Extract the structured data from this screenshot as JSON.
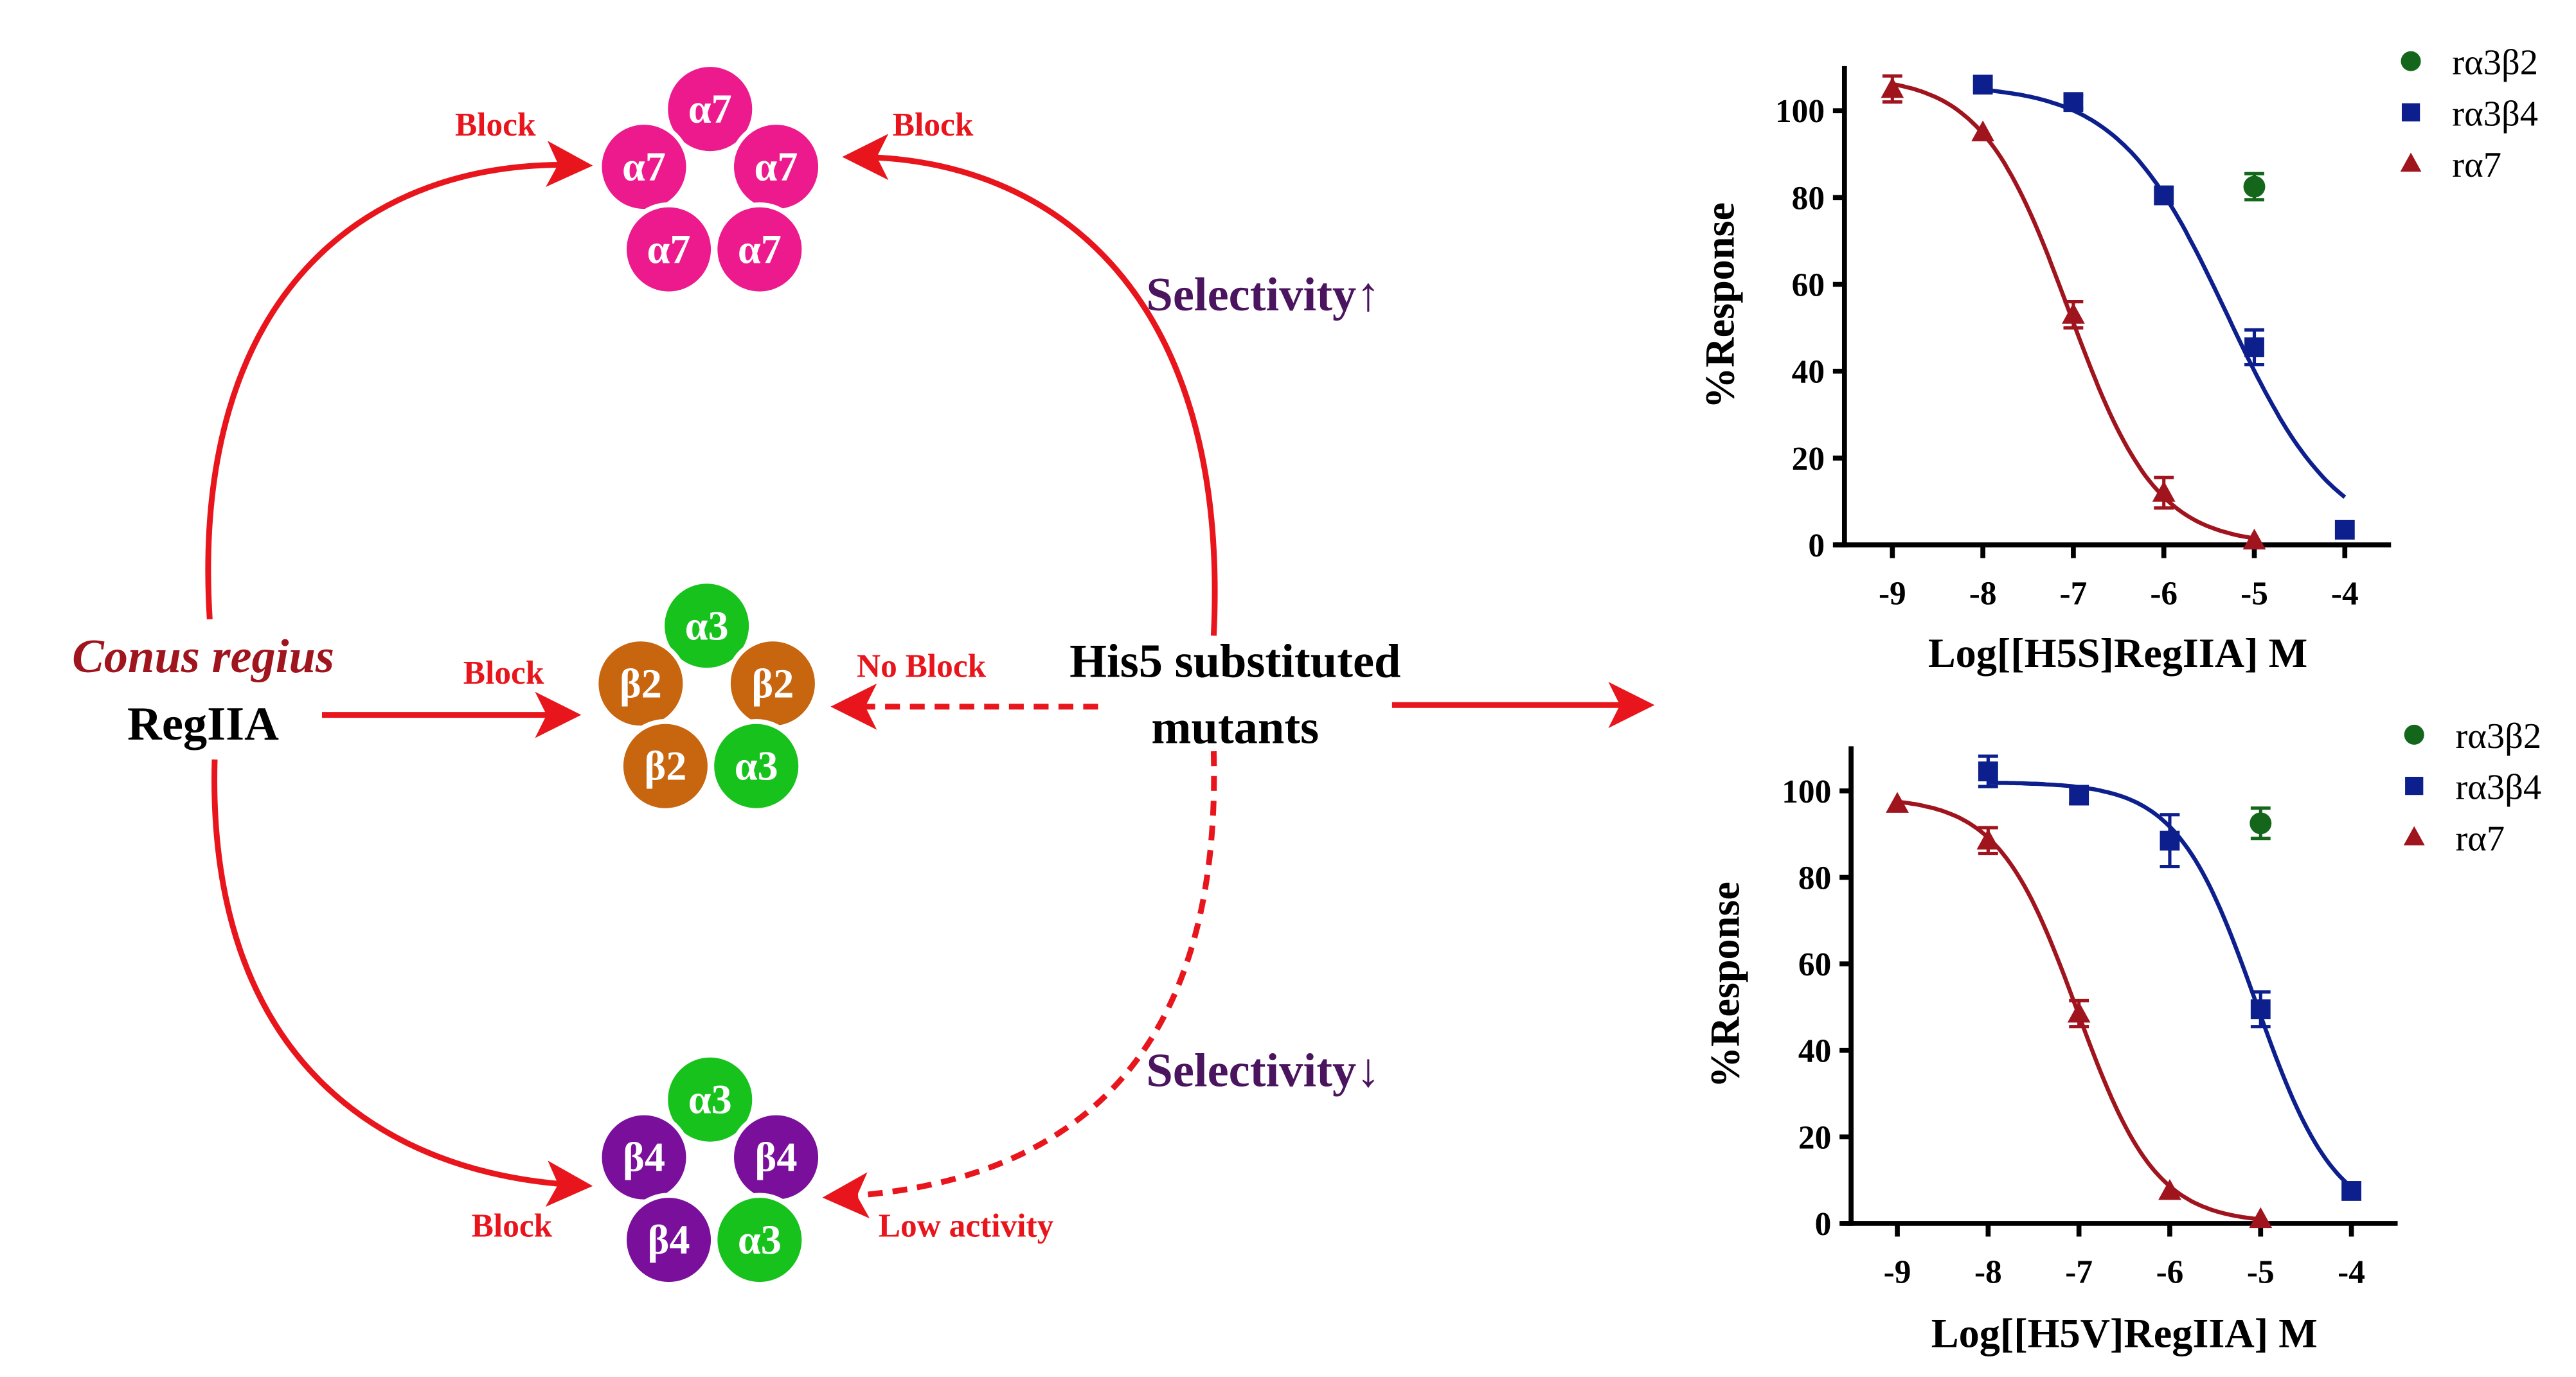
{
  "diagram": {
    "labels": {
      "block_top_left": "Block",
      "block_top_right": "Block",
      "selectivity_up": "Selectivity↑",
      "species": "Conus regius",
      "peptide": "RegIIA",
      "block_middle": "Block",
      "no_block": "No Block",
      "mutants_line1": "His5 substituted",
      "mutants_line2": "mutants",
      "selectivity_down": "Selectivity↓",
      "block_bottom": "Block",
      "low_activity": "Low activity"
    },
    "receptors": [
      {
        "name": "alpha7",
        "subunits": [
          "α7",
          "α7",
          "α7",
          "α7",
          "α7"
        ],
        "colors": [
          "#ec1a8c",
          "#ec1a8c",
          "#ec1a8c",
          "#ec1a8c",
          "#ec1a8c"
        ]
      },
      {
        "name": "alpha3beta2",
        "subunits": [
          "α3",
          "β2",
          "β2",
          "β2",
          "α3"
        ],
        "colors": [
          "#16c21b",
          "#c8650f",
          "#c8650f",
          "#c8650f",
          "#16c21b"
        ]
      },
      {
        "name": "alpha3beta4",
        "subunits": [
          "α3",
          "β4",
          "β4",
          "β4",
          "α3"
        ],
        "colors": [
          "#16c21b",
          "#7a0f9c",
          "#7a0f9c",
          "#7a0f9c",
          "#16c21b"
        ]
      }
    ],
    "colors": {
      "arrow": "#e8161c",
      "species": "#a0141e",
      "selectivity": "#4b145e"
    }
  },
  "chart_data": [
    {
      "type": "scatter",
      "title": "",
      "xlabel": "Log[[H5S]RegIIA] M",
      "ylabel": "%Response",
      "xlim": [
        -9.5,
        -3.5
      ],
      "ylim": [
        0,
        110
      ],
      "xticks": [
        "-9",
        "-8",
        "-7",
        "-6",
        "-5",
        "-4"
      ],
      "yticks": [
        "0",
        "20",
        "40",
        "60",
        "80",
        "100"
      ],
      "legend_position": "top-right",
      "series": [
        {
          "name": "rα3β2",
          "color": "#13661a",
          "marker": "circle",
          "x": [
            -5
          ],
          "y": [
            82.5
          ],
          "err": [
            3
          ],
          "fit": null
        },
        {
          "name": "rα3β4",
          "color": "#0c1f8c",
          "marker": "square",
          "x": [
            -8,
            -7,
            -6,
            -5,
            -4
          ],
          "y": [
            106,
            102,
            80.5,
            45.5,
            3.5
          ],
          "err": [
            0,
            1.5,
            0,
            4,
            0
          ],
          "fit": {
            "top": 106,
            "bottom": 0,
            "logIC50": -5.3,
            "hill": 0.72,
            "xrange": [
              -8,
              -4
            ]
          }
        },
        {
          "name": "rα7",
          "color": "#a0141e",
          "marker": "triangle",
          "x": [
            -9,
            -8,
            -7,
            -6,
            -5
          ],
          "y": [
            105,
            95,
            53,
            12,
            1
          ],
          "err": [
            3,
            0,
            3,
            3.5,
            0
          ],
          "fit": {
            "top": 108,
            "bottom": 0,
            "logIC50": -7.05,
            "hill": 0.9,
            "xrange": [
              -9,
              -5
            ]
          }
        }
      ]
    },
    {
      "type": "scatter",
      "title": "",
      "xlabel": "Log[[H5V]RegIIA] M",
      "ylabel": "%Response",
      "xlim": [
        -9.5,
        -3.5
      ],
      "ylim": [
        0,
        110
      ],
      "xticks": [
        "-9",
        "-8",
        "-7",
        "-6",
        "-5",
        "-4"
      ],
      "yticks": [
        "0",
        "20",
        "40",
        "60",
        "80",
        "100"
      ],
      "legend_position": "top-right",
      "series": [
        {
          "name": "rα3β2",
          "color": "#13661a",
          "marker": "circle",
          "x": [
            -5
          ],
          "y": [
            92.5
          ],
          "err": [
            3.5
          ],
          "fit": null
        },
        {
          "name": "rα3β4",
          "color": "#0c1f8c",
          "marker": "square",
          "x": [
            -8,
            -7,
            -6,
            -5,
            -4
          ],
          "y": [
            104.5,
            99,
            88.5,
            49.5,
            7.5
          ],
          "err": [
            3.5,
            2,
            6,
            4,
            0
          ],
          "fit": {
            "top": 102,
            "bottom": 0,
            "logIC50": -5.05,
            "hill": 1.0,
            "xrange": [
              -8,
              -4
            ]
          }
        },
        {
          "name": "rα7",
          "color": "#a0141e",
          "marker": "triangle",
          "x": [
            -9,
            -8,
            -7,
            -6,
            -5
          ],
          "y": [
            97,
            88.5,
            48.5,
            7.5,
            1
          ],
          "err": [
            0,
            3,
            3,
            0,
            0
          ],
          "fit": {
            "top": 98.5,
            "bottom": 0,
            "logIC50": -7.02,
            "hill": 1.0,
            "xrange": [
              -9,
              -5
            ]
          }
        }
      ]
    }
  ]
}
